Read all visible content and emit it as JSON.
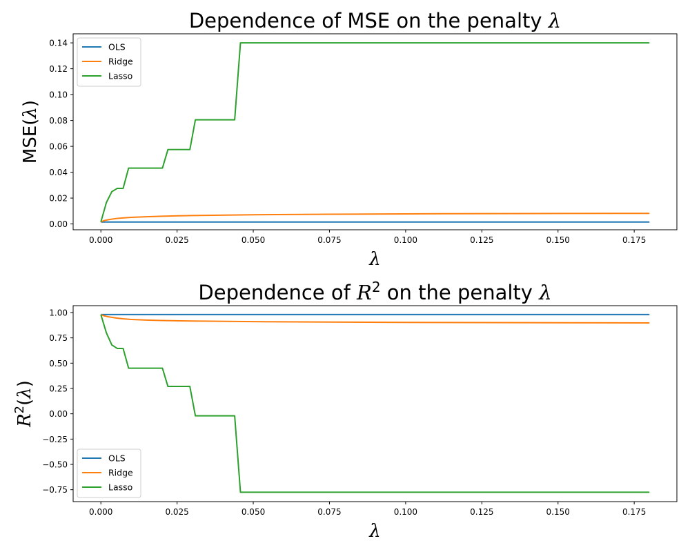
{
  "chart_data": [
    {
      "type": "line",
      "title_prefix": "Dependence of MSE on the penalty ",
      "title_symbol": "λ",
      "ylabel_prefix": "MSE(",
      "ylabel_symbol": "λ",
      "ylabel_suffix": ")",
      "xlabel": "λ",
      "xlim": [
        -0.0091,
        0.189
      ],
      "ylim": [
        -0.0045,
        0.147
      ],
      "xticks": [
        0.0,
        0.025,
        0.05,
        0.075,
        0.1,
        0.125,
        0.15,
        0.175
      ],
      "xtick_labels": [
        "0.000",
        "0.025",
        "0.050",
        "0.075",
        "0.100",
        "0.125",
        "0.150",
        "0.175"
      ],
      "yticks": [
        0.0,
        0.02,
        0.04,
        0.06,
        0.08,
        0.1,
        0.12,
        0.14
      ],
      "ytick_labels": [
        "0.00",
        "0.02",
        "0.04",
        "0.06",
        "0.08",
        "0.10",
        "0.12",
        "0.14"
      ],
      "grid": false,
      "legend_position": "top-left",
      "series": [
        {
          "name": "OLS",
          "color": "#1f77b4",
          "points": [
            [
              0.0,
              0.0015
            ],
            [
              0.18,
              0.0015
            ]
          ]
        },
        {
          "name": "Ridge",
          "color": "#ff7f0e",
          "points": [
            [
              0.0,
              0.0015
            ],
            [
              0.001,
              0.0026
            ],
            [
              0.0025,
              0.0033
            ],
            [
              0.005,
              0.0042
            ],
            [
              0.0075,
              0.0047
            ],
            [
              0.01,
              0.0051
            ],
            [
              0.015,
              0.0056
            ],
            [
              0.02,
              0.006
            ],
            [
              0.03,
              0.0065
            ],
            [
              0.05,
              0.0071
            ],
            [
              0.075,
              0.0075
            ],
            [
              0.1,
              0.0078
            ],
            [
              0.125,
              0.008
            ],
            [
              0.15,
              0.0081
            ],
            [
              0.18,
              0.0082
            ]
          ]
        },
        {
          "name": "Lasso",
          "color": "#2ca02c",
          "points": [
            [
              0.0,
              0.0015
            ],
            [
              0.0018,
              0.0165
            ],
            [
              0.0036,
              0.025
            ],
            [
              0.0054,
              0.0275
            ],
            [
              0.0073,
              0.0275
            ],
            [
              0.0091,
              0.0432
            ],
            [
              0.0109,
              0.0432
            ],
            [
              0.0202,
              0.0432
            ],
            [
              0.022,
              0.0575
            ],
            [
              0.0292,
              0.0575
            ],
            [
              0.031,
              0.0805
            ],
            [
              0.0439,
              0.0805
            ],
            [
              0.0458,
              0.14
            ],
            [
              0.18,
              0.14
            ]
          ]
        }
      ]
    },
    {
      "type": "line",
      "title_prefix": "Dependence of ",
      "title_symbol": "R",
      "title_superscript": "2",
      "title_suffix": " on the penalty ",
      "title_symbol2": "λ",
      "ylabel_symbol": "R",
      "ylabel_superscript": "2",
      "ylabel_open": "(",
      "ylabel_inner": "λ",
      "ylabel_close": ")",
      "xlabel": "λ",
      "xlim": [
        -0.0091,
        0.189
      ],
      "ylim": [
        -0.868,
        1.068
      ],
      "xticks": [
        0.0,
        0.025,
        0.05,
        0.075,
        0.1,
        0.125,
        0.15,
        0.175
      ],
      "xtick_labels": [
        "0.000",
        "0.025",
        "0.050",
        "0.075",
        "0.100",
        "0.125",
        "0.150",
        "0.175"
      ],
      "yticks": [
        -0.75,
        -0.5,
        -0.25,
        0.0,
        0.25,
        0.5,
        0.75,
        1.0
      ],
      "ytick_labels": [
        "−0.75",
        "−0.50",
        "−0.25",
        "0.00",
        "0.25",
        "0.50",
        "0.75",
        "1.00"
      ],
      "grid": false,
      "legend_position": "bottom-left",
      "series": [
        {
          "name": "OLS",
          "color": "#1f77b4",
          "points": [
            [
              0.0,
              0.98
            ],
            [
              0.18,
              0.98
            ]
          ]
        },
        {
          "name": "Ridge",
          "color": "#ff7f0e",
          "points": [
            [
              0.0,
              0.98
            ],
            [
              0.001,
              0.968
            ],
            [
              0.0025,
              0.958
            ],
            [
              0.005,
              0.946
            ],
            [
              0.0075,
              0.938
            ],
            [
              0.01,
              0.932
            ],
            [
              0.015,
              0.926
            ],
            [
              0.02,
              0.921
            ],
            [
              0.03,
              0.916
            ],
            [
              0.05,
              0.91
            ],
            [
              0.075,
              0.906
            ],
            [
              0.1,
              0.903
            ],
            [
              0.125,
              0.901
            ],
            [
              0.15,
              0.899
            ],
            [
              0.18,
              0.898
            ]
          ]
        },
        {
          "name": "Lasso",
          "color": "#2ca02c",
          "points": [
            [
              0.0,
              0.98
            ],
            [
              0.0018,
              0.8
            ],
            [
              0.0036,
              0.68
            ],
            [
              0.0054,
              0.645
            ],
            [
              0.0073,
              0.645
            ],
            [
              0.0091,
              0.45
            ],
            [
              0.0109,
              0.45
            ],
            [
              0.0202,
              0.45
            ],
            [
              0.022,
              0.27
            ],
            [
              0.0292,
              0.27
            ],
            [
              0.031,
              -0.02
            ],
            [
              0.0439,
              -0.02
            ],
            [
              0.0458,
              -0.775
            ],
            [
              0.18,
              -0.775
            ]
          ]
        }
      ]
    }
  ]
}
